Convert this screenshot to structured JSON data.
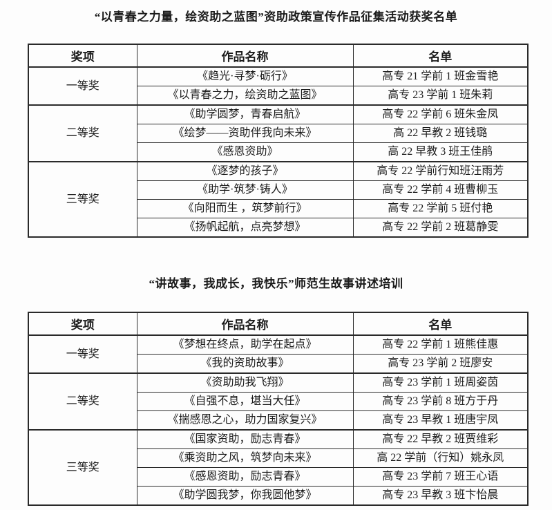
{
  "colors": {
    "background": "#fdfdfd",
    "text": "#1b1b1b",
    "table_border": "#2a2a2a"
  },
  "section1": {
    "title": "“以青春之力量，绘资助之蓝图”资助政策宣传作品征集活动获奖名单",
    "table": {
      "headers": [
        "奖项",
        "作品名称",
        "名单"
      ],
      "groups": [
        {
          "award": "一等奖",
          "rows": [
            {
              "work": "《趋光·寻梦·砺行》",
              "name": "高专 21 学前 1 班金雪艳"
            },
            {
              "work": "《以青春之力，绘资助之蓝图》",
              "name": "高专 23 学前 1 班朱莉"
            }
          ]
        },
        {
          "award": "二等奖",
          "rows": [
            {
              "work": "《助学圆梦，青春启航》",
              "name": "高专 22 学前 6 班朱金凤"
            },
            {
              "work": "《绘梦——资助伴我向未来》",
              "name": "高 22 早教 2 班钱璐"
            },
            {
              "work": "《感恩资助》",
              "name": "高 22 早教 3 班王佳鹃"
            }
          ]
        },
        {
          "award": "三等奖",
          "rows": [
            {
              "work": "《逐梦的孩子》",
              "name": "高专 22 学前行知班汪雨芳"
            },
            {
              "work": "《助学·筑梦·铸人》",
              "name": "高专 22 学前 4 班曹柳玉"
            },
            {
              "work": "《向阳而生 ，筑梦前行》",
              "name": "高专 22 学前 5 班付艳"
            },
            {
              "work": "《扬帆起航，点亮梦想》",
              "name": "高专 22 学前 2 班葛静雯"
            }
          ]
        }
      ]
    }
  },
  "section2": {
    "title": "“讲故事，我成长，我快乐”师范生故事讲述培训",
    "table": {
      "headers": [
        "奖项",
        "作品名称",
        "名单"
      ],
      "groups": [
        {
          "award": "一等奖",
          "rows": [
            {
              "work": "《梦想在终点，助学在起点》",
              "name": "高专 22 学前 1 班熊佳惠"
            },
            {
              "work": "《我的资助故事》",
              "name": "高专 23 学前 2 班廖安"
            }
          ]
        },
        {
          "award": "二等奖",
          "rows": [
            {
              "work": "《资助助我飞翔》",
              "name": "高专 23 学前 1 班周姿茵"
            },
            {
              "work": "《自强不息，堪当大任》",
              "name": "高专 23 学前 8 班方于丹"
            },
            {
              "work": "《揣感恩之心，助力国家复兴》",
              "name": "高专 23 早教 1 班唐宇凤"
            }
          ]
        },
        {
          "award": "三等奖",
          "rows": [
            {
              "work": "《国家资助，励志青春》",
              "name": "高专 22 早教 2 班贾维彩"
            },
            {
              "work": "《乘资助之风，筑梦向未来》",
              "name": "高 22 学前（行知）姚永凤"
            },
            {
              "work": "《感恩资助，励志青春》",
              "name": "高专 23 学前 7 班王心语"
            },
            {
              "work": "《助学圆我梦，你我圆他梦》",
              "name": "高专 23 早教 3 班卞怡晨"
            }
          ]
        }
      ]
    }
  }
}
